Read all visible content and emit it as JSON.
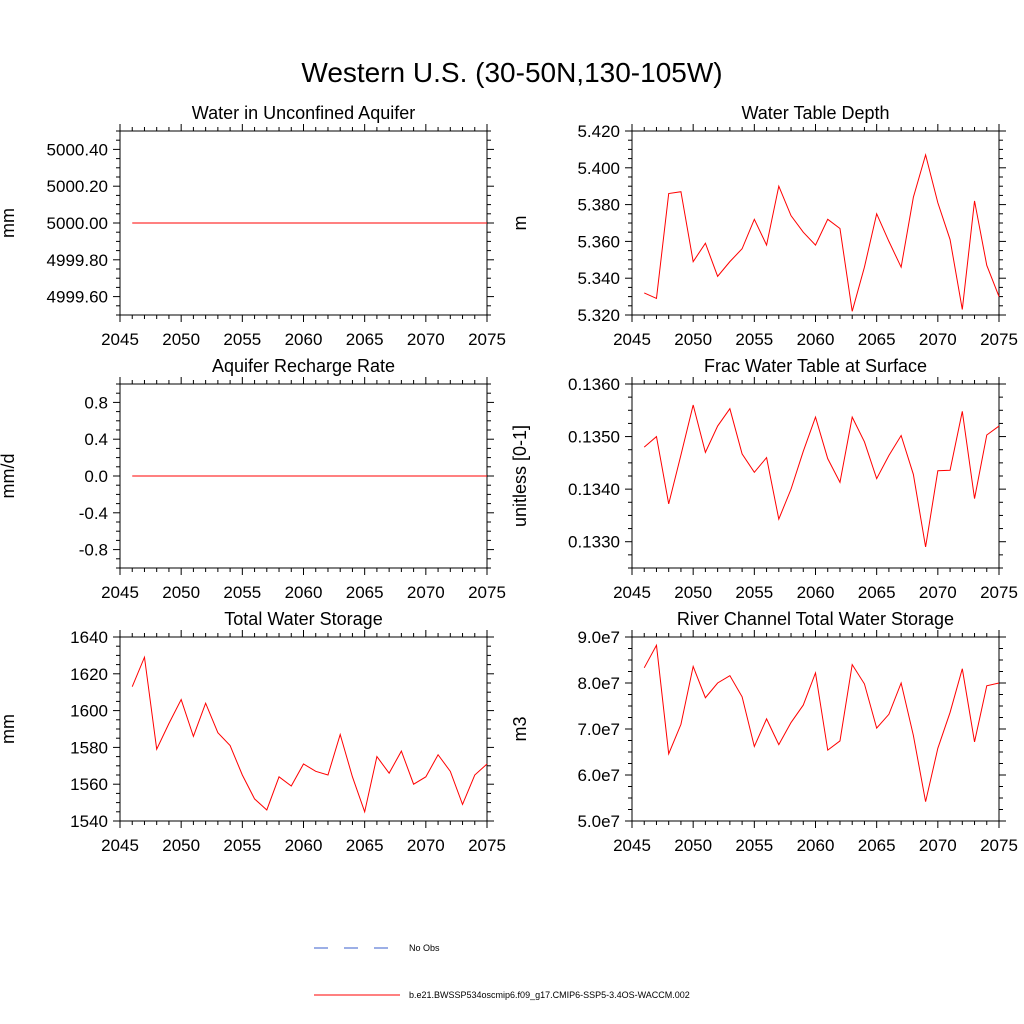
{
  "title": "Western U.S. (30-50N,130-105W)",
  "colors": {
    "series": "#ff0000",
    "obs": "#3a5fcd",
    "axis": "#000000"
  },
  "legend": {
    "items": [
      {
        "label": "No Obs",
        "style": "dashed",
        "color": "#3a5fcd"
      },
      {
        "label": "b.e21.BWSSP534oscmip6.f09_g17.CMIP6-SSP5-3.4OS-WACCM.002",
        "style": "solid",
        "color": "#ff0000"
      }
    ]
  },
  "chart_data": [
    {
      "type": "line",
      "title": "Water in Unconfined Aquifer",
      "ylabel": "mm",
      "xlim": [
        2045,
        2075
      ],
      "ylim": [
        4999.5,
        5000.5
      ],
      "xticks": [
        2045,
        2050,
        2055,
        2060,
        2065,
        2070,
        2075
      ],
      "yticks": [
        4999.6,
        4999.8,
        5000.0,
        5000.2,
        5000.4
      ],
      "ytick_labels": [
        "4999.60",
        "4999.80",
        "5000.00",
        "5000.20",
        "5000.40"
      ],
      "x": [
        2046,
        2047,
        2048,
        2049,
        2050,
        2051,
        2052,
        2053,
        2054,
        2055,
        2056,
        2057,
        2058,
        2059,
        2060,
        2061,
        2062,
        2063,
        2064,
        2065,
        2066,
        2067,
        2068,
        2069,
        2070,
        2071,
        2072,
        2073,
        2074,
        2075
      ],
      "series": [
        {
          "values": [
            5000.0,
            5000.0,
            5000.0,
            5000.0,
            5000.0,
            5000.0,
            5000.0,
            5000.0,
            5000.0,
            5000.0,
            5000.0,
            5000.0,
            5000.0,
            5000.0,
            5000.0,
            5000.0,
            5000.0,
            5000.0,
            5000.0,
            5000.0,
            5000.0,
            5000.0,
            5000.0,
            5000.0,
            5000.0,
            5000.0,
            5000.0,
            5000.0,
            5000.0,
            5000.0
          ]
        }
      ]
    },
    {
      "type": "line",
      "title": "Water Table Depth",
      "ylabel": "m",
      "xlim": [
        2045,
        2075
      ],
      "ylim": [
        5.32,
        5.42
      ],
      "xticks": [
        2045,
        2050,
        2055,
        2060,
        2065,
        2070,
        2075
      ],
      "yticks": [
        5.32,
        5.34,
        5.36,
        5.38,
        5.4,
        5.42
      ],
      "ytick_labels": [
        "5.320",
        "5.340",
        "5.360",
        "5.380",
        "5.400",
        "5.420"
      ],
      "x": [
        2046,
        2047,
        2048,
        2049,
        2050,
        2051,
        2052,
        2053,
        2054,
        2055,
        2056,
        2057,
        2058,
        2059,
        2060,
        2061,
        2062,
        2063,
        2064,
        2065,
        2066,
        2067,
        2068,
        2069,
        2070,
        2071,
        2072,
        2073,
        2074,
        2075
      ],
      "series": [
        {
          "values": [
            5.332,
            5.329,
            5.386,
            5.387,
            5.349,
            5.359,
            5.341,
            5.349,
            5.356,
            5.372,
            5.358,
            5.39,
            5.374,
            5.365,
            5.358,
            5.372,
            5.367,
            5.322,
            5.346,
            5.375,
            5.36,
            5.346,
            5.384,
            5.407,
            5.381,
            5.361,
            5.323,
            5.382,
            5.347,
            5.33
          ]
        }
      ]
    },
    {
      "type": "line",
      "title": "Aquifer Recharge Rate",
      "ylabel": "mm/d",
      "xlim": [
        2045,
        2075
      ],
      "ylim": [
        -1.0,
        1.0
      ],
      "xticks": [
        2045,
        2050,
        2055,
        2060,
        2065,
        2070,
        2075
      ],
      "yticks": [
        -0.8,
        -0.4,
        0.0,
        0.4,
        0.8
      ],
      "ytick_labels": [
        "-0.8",
        "-0.4",
        "0.0",
        "0.4",
        "0.8"
      ],
      "x": [
        2046,
        2047,
        2048,
        2049,
        2050,
        2051,
        2052,
        2053,
        2054,
        2055,
        2056,
        2057,
        2058,
        2059,
        2060,
        2061,
        2062,
        2063,
        2064,
        2065,
        2066,
        2067,
        2068,
        2069,
        2070,
        2071,
        2072,
        2073,
        2074,
        2075
      ],
      "series": [
        {
          "values": [
            0,
            0,
            0,
            0,
            0,
            0,
            0,
            0,
            0,
            0,
            0,
            0,
            0,
            0,
            0,
            0,
            0,
            0,
            0,
            0,
            0,
            0,
            0,
            0,
            0,
            0,
            0,
            0,
            0,
            0
          ]
        }
      ]
    },
    {
      "type": "line",
      "title": "Frac Water Table at Surface",
      "ylabel": "unitless [0-1]",
      "xlim": [
        2045,
        2075
      ],
      "ylim": [
        0.1325,
        0.136
      ],
      "xticks": [
        2045,
        2050,
        2055,
        2060,
        2065,
        2070,
        2075
      ],
      "yticks": [
        0.133,
        0.134,
        0.135,
        0.136
      ],
      "ytick_labels": [
        "0.1330",
        "0.1340",
        "0.1350",
        "0.1360"
      ],
      "x": [
        2046,
        2047,
        2048,
        2049,
        2050,
        2051,
        2052,
        2053,
        2054,
        2055,
        2056,
        2057,
        2058,
        2059,
        2060,
        2061,
        2062,
        2063,
        2064,
        2065,
        2066,
        2067,
        2068,
        2069,
        2070,
        2071,
        2072,
        2073,
        2074,
        2075
      ],
      "series": [
        {
          "values": [
            0.1348,
            0.135,
            0.13372,
            0.13465,
            0.1356,
            0.1347,
            0.1352,
            0.13553,
            0.13467,
            0.13432,
            0.1346,
            0.13343,
            0.134,
            0.13472,
            0.13537,
            0.13458,
            0.13413,
            0.13537,
            0.1349,
            0.1342,
            0.13464,
            0.13502,
            0.13428,
            0.1329,
            0.13435,
            0.13436,
            0.13548,
            0.13382,
            0.13503,
            0.1352
          ]
        }
      ]
    },
    {
      "type": "line",
      "title": "Total Water Storage",
      "ylabel": "mm",
      "xlim": [
        2045,
        2075
      ],
      "ylim": [
        1540,
        1640
      ],
      "xticks": [
        2045,
        2050,
        2055,
        2060,
        2065,
        2070,
        2075
      ],
      "yticks": [
        1540,
        1560,
        1580,
        1600,
        1620,
        1640
      ],
      "ytick_labels": [
        "1540",
        "1560",
        "1580",
        "1600",
        "1620",
        "1640"
      ],
      "x": [
        2046,
        2047,
        2048,
        2049,
        2050,
        2051,
        2052,
        2053,
        2054,
        2055,
        2056,
        2057,
        2058,
        2059,
        2060,
        2061,
        2062,
        2063,
        2064,
        2065,
        2066,
        2067,
        2068,
        2069,
        2070,
        2071,
        2072,
        2073,
        2074,
        2075
      ],
      "series": [
        {
          "values": [
            1613,
            1629,
            1579,
            1593,
            1606,
            1586,
            1604,
            1588,
            1581,
            1565,
            1552,
            1546,
            1564,
            1559,
            1571,
            1567,
            1565,
            1587,
            1564,
            1545,
            1575,
            1566,
            1578,
            1560,
            1564,
            1576,
            1567,
            1549,
            1565,
            1571
          ]
        }
      ]
    },
    {
      "type": "line",
      "title": "River Channel Total Water Storage",
      "ylabel": "m3",
      "xlim": [
        2045,
        2075
      ],
      "ylim": [
        50000000,
        90000000
      ],
      "xticks": [
        2045,
        2050,
        2055,
        2060,
        2065,
        2070,
        2075
      ],
      "yticks": [
        50000000,
        60000000,
        70000000,
        80000000,
        90000000
      ],
      "ytick_labels": [
        "5.0e7",
        "6.0e7",
        "7.0e7",
        "8.0e7",
        "9.0e7"
      ],
      "x": [
        2046,
        2047,
        2048,
        2049,
        2050,
        2051,
        2052,
        2053,
        2054,
        2055,
        2056,
        2057,
        2058,
        2059,
        2060,
        2061,
        2062,
        2063,
        2064,
        2065,
        2066,
        2067,
        2068,
        2069,
        2070,
        2071,
        2072,
        2073,
        2074,
        2075
      ],
      "series": [
        {
          "values": [
            83300000,
            88200000,
            64600000,
            71000000,
            83600000,
            76800000,
            80000000,
            81600000,
            77000000,
            66200000,
            72200000,
            66600000,
            71400000,
            75200000,
            82200000,
            65400000,
            67400000,
            84000000,
            79800000,
            70200000,
            73200000,
            80000000,
            68600000,
            54200000,
            65800000,
            73600000,
            83100000,
            67200000,
            79400000,
            80000000
          ]
        }
      ]
    }
  ]
}
